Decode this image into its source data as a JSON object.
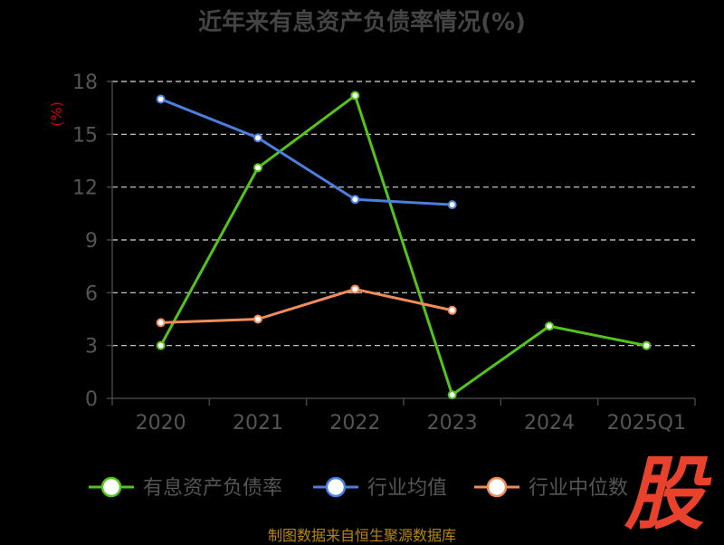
{
  "chart_data": {
    "type": "line",
    "title": "近年来有息资产负债率情况(%)",
    "ylabel": "(%)",
    "categories": [
      "2020",
      "2021",
      "2022",
      "2023",
      "2024",
      "2025Q1"
    ],
    "yticks": [
      "0",
      "3",
      "6",
      "9",
      "12",
      "15",
      "18"
    ],
    "ylim": [
      0,
      18
    ],
    "grid": "horizontal-dashed",
    "legend_position": "bottom",
    "series": [
      {
        "name": "有息资产负债率",
        "color": "#52c41a",
        "values": [
          3.0,
          13.1,
          17.2,
          0.2,
          4.1,
          3.0
        ]
      },
      {
        "name": "行业均值",
        "color": "#4a7fe0",
        "values": [
          17.0,
          14.8,
          11.3,
          11.0,
          null,
          null
        ]
      },
      {
        "name": "行业中位数",
        "color": "#f08c5a",
        "values": [
          4.3,
          4.5,
          6.2,
          5.0,
          null,
          null
        ]
      }
    ]
  },
  "source": "制图数据来自恒生聚源数据库",
  "logo_text": "股"
}
